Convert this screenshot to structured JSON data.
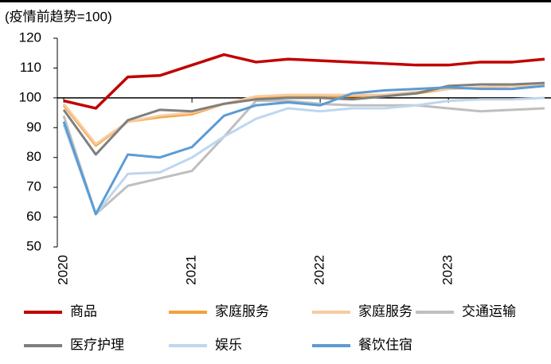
{
  "chart_data": {
    "type": "line",
    "y_axis_label": "(疫情前趋势=100)",
    "x": [
      2020,
      2020.25,
      2020.5,
      2020.75,
      2021,
      2021.25,
      2021.5,
      2021.75,
      2022,
      2022.25,
      2022.5,
      2022.75,
      2023,
      2023.25,
      2023.5,
      2023.75
    ],
    "xlim": [
      2019.95,
      2023.8
    ],
    "xticks": [
      2020,
      2021,
      2022,
      2023
    ],
    "ylim": [
      50,
      120
    ],
    "yticks": [
      50,
      60,
      70,
      80,
      90,
      100,
      110,
      120
    ],
    "reference_line": 100,
    "series": [
      {
        "name": "商品",
        "color": "#c00000",
        "values": [
          99,
          96.5,
          107,
          107.5,
          111,
          114.5,
          112,
          113,
          112.5,
          112,
          111.5,
          111,
          111,
          112,
          112,
          113
        ]
      },
      {
        "name": "家庭服务",
        "color": "#f4a13a",
        "values": [
          97.5,
          84,
          92,
          93.5,
          94.5,
          98,
          100,
          100.5,
          100.5,
          100.5,
          101,
          101.5,
          103,
          103.5,
          104,
          104
        ]
      },
      {
        "name": "家庭服务",
        "color": "#f8cba0",
        "values": [
          98,
          84.5,
          92,
          94,
          95,
          98,
          100.5,
          101,
          101,
          101,
          101,
          102,
          103,
          103.5,
          104,
          104.5
        ]
      },
      {
        "name": "交通运输",
        "color": "#bfbfbf",
        "values": [
          94,
          61,
          70.5,
          73,
          75.5,
          87,
          99,
          99,
          98,
          97.5,
          97.5,
          97.5,
          96.5,
          95.5,
          96,
          96.5
        ]
      },
      {
        "name": "医疗护理",
        "color": "#7f7f7f",
        "values": [
          96,
          81,
          92.5,
          96,
          95.5,
          98,
          99.5,
          100,
          100,
          99.5,
          100.5,
          101.5,
          104,
          104.5,
          104.5,
          105
        ]
      },
      {
        "name": "娱乐",
        "color": "#bdd7ee",
        "values": [
          91,
          61,
          74.5,
          75,
          80,
          87,
          93,
          96.5,
          95.5,
          96.5,
          96.5,
          97.5,
          99,
          99.5,
          99.5,
          100
        ]
      },
      {
        "name": "餐饮住宿",
        "color": "#5b9bd5",
        "values": [
          92,
          61,
          81,
          80,
          83.5,
          94,
          97.5,
          98.5,
          97.5,
          101.5,
          102.5,
          103,
          103.5,
          103,
          103,
          104
        ]
      }
    ]
  }
}
